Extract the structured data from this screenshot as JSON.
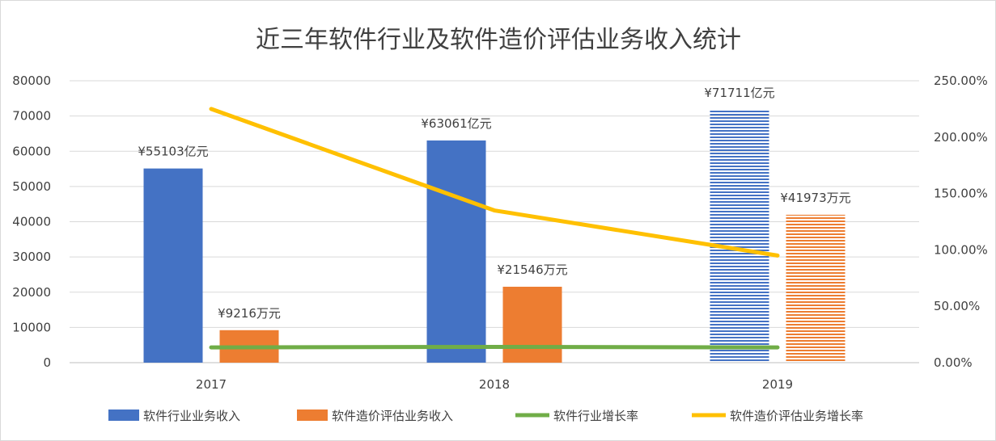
{
  "chart_data": {
    "type": "bar",
    "title": "近三年软件行业及软件造价评估业务收入统计",
    "categories": [
      "2017",
      "2018",
      "2019"
    ],
    "y_left": {
      "min": 0,
      "max": 80000,
      "ticks": [
        "0",
        "10000",
        "20000",
        "30000",
        "40000",
        "50000",
        "60000",
        "70000",
        "80000"
      ]
    },
    "y_right": {
      "min": 0,
      "max": 2.5,
      "ticks": [
        "0.00%",
        "50.00%",
        "100.00%",
        "150.00%",
        "200.00%",
        "250.00%"
      ]
    },
    "series": [
      {
        "name": "软件行业业务收入",
        "type": "bar",
        "axis": "left",
        "color": "#4472C4",
        "values": [
          55103,
          63061,
          71711
        ],
        "labels": [
          "¥55103亿元",
          "¥63061亿元",
          "¥71711亿元"
        ],
        "striped_index": 2
      },
      {
        "name": "软件造价评估业务收入",
        "type": "bar",
        "axis": "left",
        "color": "#ED7D31",
        "values": [
          9216,
          21546,
          41973
        ],
        "labels": [
          "¥9216万元",
          "¥21546万元",
          "¥41973万元"
        ],
        "striped_index": 2
      },
      {
        "name": "软件行业增长率",
        "type": "line",
        "axis": "right",
        "color": "#70AD47",
        "values": [
          0.135,
          0.14,
          0.135
        ]
      },
      {
        "name": "软件造价评估业务增长率",
        "type": "line",
        "axis": "right",
        "color": "#FFC000",
        "values": [
          2.25,
          1.35,
          0.95
        ]
      }
    ],
    "grid": true,
    "legend_position": "bottom"
  }
}
